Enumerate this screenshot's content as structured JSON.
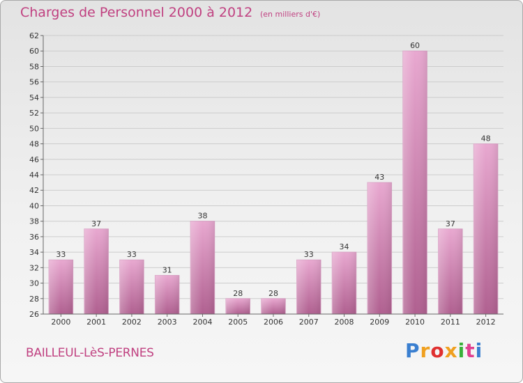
{
  "header": {
    "title": "Charges de Personnel 2000 à 2012",
    "subtitle": "(en milliers d'€)"
  },
  "footer": {
    "commune": "BAILLEUL-LèS-PERNES",
    "logo_text": "Proxiti",
    "logo_colors": [
      "#3a7fd0",
      "#f0a020",
      "#e03030",
      "#f0a020",
      "#3ab03a",
      "#e04090",
      "#3a7fd0"
    ]
  },
  "colors": {
    "bar_light": "#e8a8d0",
    "bar_dark": "#b06090",
    "grid": "#cccccc",
    "text_accent": "#c04080"
  },
  "chart_data": {
    "type": "bar",
    "title": "Charges de Personnel 2000 à 2012",
    "subtitle": "(en milliers d'€)",
    "xlabel": "",
    "ylabel": "",
    "categories": [
      "2000",
      "2001",
      "2002",
      "2003",
      "2004",
      "2005",
      "2006",
      "2007",
      "2008",
      "2009",
      "2010",
      "2011",
      "2012"
    ],
    "values": [
      33,
      37,
      33,
      31,
      38,
      28,
      28,
      33,
      34,
      43,
      60,
      37,
      48
    ],
    "ylim": [
      26,
      62
    ],
    "ytick_step": 2,
    "grid": true,
    "data_labels": true
  }
}
